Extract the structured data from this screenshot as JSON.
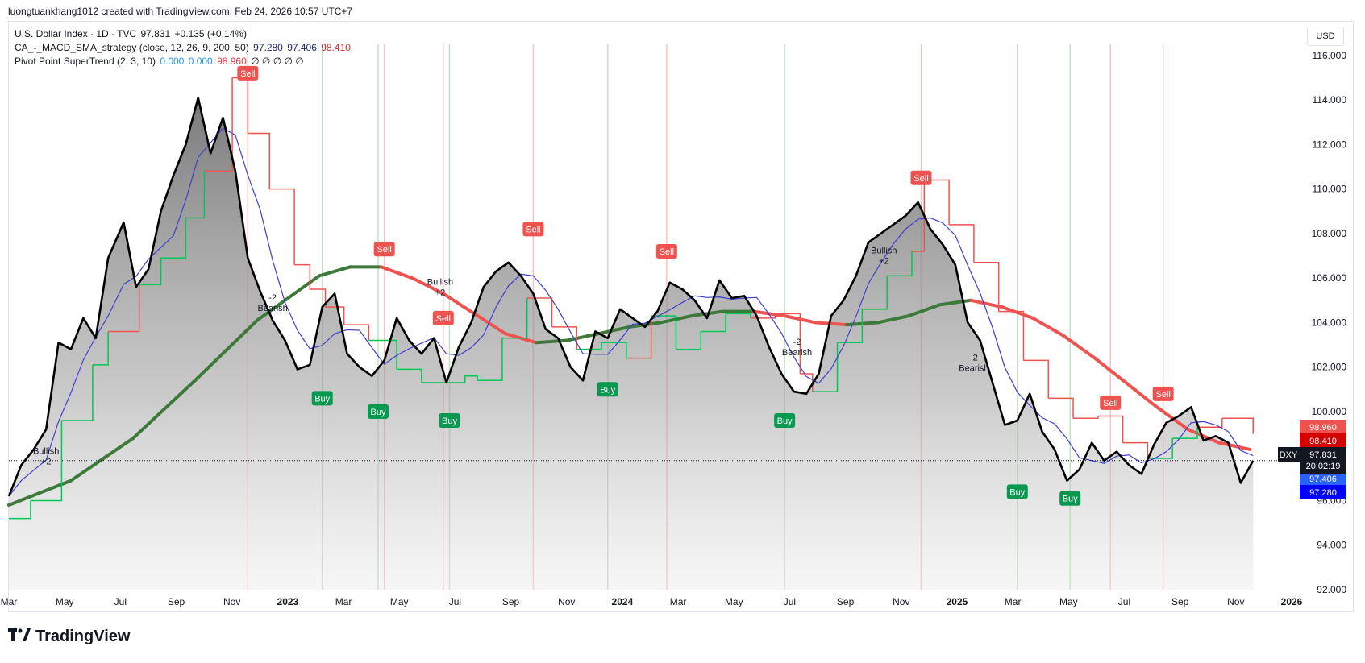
{
  "credit": "luongtuankhang1012 created with TradingView.com, Feb 24, 2026 10:57 UTC+7",
  "legend": {
    "line1": {
      "name": "U.S. Dollar Index · 1D · TVC",
      "price": "97.831",
      "change": "+0.135 (+0.14%)"
    },
    "line2": {
      "name": "CA_-_MACD_SMA_strategy (close, 12, 26, 9, 200, 50)",
      "v1": "97.280",
      "v2": "97.406",
      "v3": "98.410"
    },
    "line3": {
      "name": "Pivot Point SuperTrend (2, 3, 10)",
      "v1": "0.000",
      "v2": "0.000",
      "v3": "98.960",
      "v4": "∅ ∅ ∅ ∅ ∅"
    }
  },
  "currency": "USD",
  "footer": {
    "logo": "TradingView"
  },
  "colors": {
    "price": "#000000",
    "sma200_up": "#3d7a3a",
    "sma200_down": "#ef5350",
    "supertrend_up": "#00c853",
    "supertrend_down": "#ef5350",
    "fast": "#3f3fd0",
    "buy": "#089950",
    "sell": "#ef5350"
  },
  "chart_data": {
    "type": "line",
    "symbol": "DXY",
    "x_labels": [
      "Mar",
      "May",
      "Jul",
      "Sep",
      "Nov",
      "2023",
      "Mar",
      "May",
      "Jul",
      "Sep",
      "Nov",
      "2024",
      "Mar",
      "May",
      "Jul",
      "Sep",
      "Nov",
      "2025",
      "Mar",
      "May",
      "Jul",
      "Sep",
      "Nov",
      "2026"
    ],
    "y_ticks": [
      "116.000",
      "114.000",
      "112.000",
      "110.000",
      "108.000",
      "106.000",
      "104.000",
      "102.000",
      "100.000",
      "98.000",
      "96.000",
      "94.000",
      "92.000"
    ],
    "ylim": [
      92,
      116.5
    ],
    "xlim": [
      2022.13,
      2026.29
    ],
    "series": [
      {
        "name": "U.S. Dollar Index",
        "x": [
          2022.13,
          2022.17,
          2022.21,
          2022.25,
          2022.29,
          2022.33,
          2022.37,
          2022.41,
          2022.45,
          2022.5,
          2022.54,
          2022.58,
          2022.62,
          2022.66,
          2022.7,
          2022.74,
          2022.78,
          2022.82,
          2022.86,
          2022.9,
          2022.94,
          2022.98,
          2023.02,
          2023.06,
          2023.1,
          2023.14,
          2023.18,
          2023.22,
          2023.26,
          2023.3,
          2023.34,
          2023.38,
          2023.42,
          2023.46,
          2023.5,
          2023.54,
          2023.58,
          2023.62,
          2023.66,
          2023.7,
          2023.74,
          2023.78,
          2023.82,
          2023.86,
          2023.9,
          2023.94,
          2023.98,
          2024.02,
          2024.06,
          2024.1,
          2024.14,
          2024.18,
          2024.22,
          2024.26,
          2024.3,
          2024.34,
          2024.38,
          2024.42,
          2024.46,
          2024.5,
          2024.54,
          2024.58,
          2024.62,
          2024.66,
          2024.7,
          2024.74,
          2024.78,
          2024.82,
          2024.86,
          2024.9,
          2024.94,
          2024.98,
          2025.02,
          2025.06,
          2025.1,
          2025.14,
          2025.18,
          2025.22,
          2025.26,
          2025.3,
          2025.34,
          2025.38,
          2025.42,
          2025.46,
          2025.5,
          2025.54,
          2025.58,
          2025.62,
          2025.66,
          2025.7,
          2025.74,
          2025.78,
          2025.82,
          2025.86,
          2025.9,
          2025.94,
          2025.98,
          2026.02,
          2026.06,
          2026.1,
          2026.14
        ],
        "values": [
          96.2,
          97.6,
          98.3,
          99.2,
          103.1,
          102.8,
          104.2,
          103.3,
          106.9,
          108.5,
          105.6,
          106.4,
          109.0,
          110.6,
          112.0,
          114.1,
          111.6,
          113.2,
          110.8,
          106.9,
          105.4,
          104.1,
          103.2,
          101.9,
          102.1,
          104.7,
          105.3,
          102.6,
          102.0,
          101.6,
          102.3,
          104.2,
          103.2,
          102.6,
          103.3,
          101.3,
          102.9,
          104.0,
          105.6,
          106.3,
          106.7,
          106.1,
          105.3,
          103.7,
          103.3,
          102.0,
          101.4,
          103.6,
          103.3,
          104.6,
          104.2,
          103.8,
          104.5,
          105.8,
          105.5,
          105.0,
          104.2,
          105.9,
          105.1,
          105.2,
          104.3,
          102.9,
          101.7,
          100.9,
          100.8,
          101.7,
          104.3,
          105.0,
          106.1,
          107.6,
          108.0,
          108.4,
          108.8,
          109.4,
          108.2,
          107.5,
          106.6,
          104.0,
          103.2,
          101.3,
          99.4,
          99.6,
          100.8,
          99.1,
          98.3,
          96.9,
          97.4,
          98.6,
          97.8,
          98.2,
          97.6,
          97.2,
          98.5,
          99.5,
          99.8,
          100.2,
          98.7,
          98.9,
          98.6,
          96.8,
          97.8
        ]
      },
      {
        "name": "SMA 200",
        "x": [
          2022.13,
          2022.33,
          2022.53,
          2022.73,
          2022.93,
          2023.13,
          2023.23,
          2023.33,
          2023.43,
          2023.53,
          2023.63,
          2023.73,
          2023.83,
          2023.93,
          2024.03,
          2024.13,
          2024.23,
          2024.33,
          2024.43,
          2024.53,
          2024.63,
          2024.73,
          2024.83,
          2024.93,
          2025.03,
          2025.13,
          2025.23,
          2025.33,
          2025.43,
          2025.53,
          2025.63,
          2025.73,
          2025.83,
          2025.93,
          2026.03,
          2026.13
        ],
        "values": [
          95.8,
          96.9,
          98.8,
          101.4,
          104.1,
          106.1,
          106.5,
          106.5,
          106.0,
          105.3,
          104.4,
          103.5,
          103.1,
          103.2,
          103.5,
          103.8,
          104.0,
          104.3,
          104.5,
          104.5,
          104.3,
          104.0,
          103.9,
          104.0,
          104.3,
          104.8,
          105.0,
          104.7,
          104.2,
          103.4,
          102.4,
          101.3,
          100.2,
          99.2,
          98.6,
          98.3
        ]
      },
      {
        "name": "SuperTrend",
        "x": [
          2022.13,
          2022.2,
          2022.3,
          2022.4,
          2022.45,
          2022.55,
          2022.62,
          2022.7,
          2022.76,
          2022.85,
          2022.9,
          2022.97,
          2023.05,
          2023.1,
          2023.15,
          2023.21,
          2023.29,
          2023.38,
          2023.46,
          2023.52,
          2023.6,
          2023.64,
          2023.72,
          2023.8,
          2023.88,
          2023.96,
          2024.04,
          2024.12,
          2024.2,
          2024.28,
          2024.36,
          2024.44,
          2024.52,
          2024.6,
          2024.68,
          2024.72,
          2024.8,
          2024.88,
          2024.96,
          2025.04,
          2025.08,
          2025.16,
          2025.24,
          2025.32,
          2025.4,
          2025.48,
          2025.56,
          2025.64,
          2025.72,
          2025.8,
          2025.88,
          2025.96,
          2026.04,
          2026.14
        ],
        "values": [
          95.2,
          96.0,
          99.6,
          102.1,
          103.6,
          105.7,
          106.9,
          108.7,
          110.8,
          115.0,
          112.5,
          110.0,
          106.6,
          105.5,
          104.7,
          103.9,
          103.2,
          101.9,
          101.3,
          101.3,
          101.6,
          101.4,
          103.3,
          105.1,
          103.8,
          102.8,
          103.1,
          102.4,
          104.3,
          102.8,
          103.6,
          104.4,
          104.2,
          104.4,
          101.7,
          100.9,
          103.1,
          104.6,
          106.1,
          107.2,
          110.4,
          108.4,
          106.7,
          104.5,
          102.3,
          100.6,
          99.7,
          99.8,
          98.6,
          97.9,
          98.8,
          99.3,
          99.7,
          99.0
        ]
      }
    ],
    "last_price": "97.831",
    "countdown": "20:02:19",
    "price_labels": [
      "98.960",
      "98.410",
      "97.406",
      "97.280"
    ],
    "signals": [
      {
        "label": "Sell",
        "x": 2022.9,
        "y": 115.2
      },
      {
        "label": "Sell",
        "x": 2023.34,
        "y": 107.3
      },
      {
        "label": "Sell",
        "x": 2023.53,
        "y": 104.2
      },
      {
        "label": "Sell",
        "x": 2023.82,
        "y": 108.2
      },
      {
        "label": "Sell",
        "x": 2024.25,
        "y": 107.2
      },
      {
        "label": "Sell",
        "x": 2025.07,
        "y": 110.5
      },
      {
        "label": "Sell",
        "x": 2025.68,
        "y": 100.4
      },
      {
        "label": "Sell",
        "x": 2025.85,
        "y": 100.8
      },
      {
        "label": "Buy",
        "x": 2023.14,
        "y": 100.6
      },
      {
        "label": "Buy",
        "x": 2023.32,
        "y": 100.0
      },
      {
        "label": "Buy",
        "x": 2023.55,
        "y": 99.6
      },
      {
        "label": "Buy",
        "x": 2024.06,
        "y": 101.0
      },
      {
        "label": "Buy",
        "x": 2024.63,
        "y": 99.6
      },
      {
        "label": "Buy",
        "x": 2025.38,
        "y": 96.4
      },
      {
        "label": "Buy",
        "x": 2025.55,
        "y": 96.1
      }
    ],
    "annotations": [
      {
        "text": "Bullish",
        "sub": "+2",
        "x": 2022.25,
        "y": 98.1
      },
      {
        "text": "-2",
        "sub": "Bearish",
        "x": 2022.98,
        "y": 105.0
      },
      {
        "text": "Bullish",
        "sub": "+2",
        "x": 2023.52,
        "y": 105.7
      },
      {
        "text": "-2",
        "sub": "Bearish",
        "x": 2024.67,
        "y": 103.0
      },
      {
        "text": "Bullish",
        "sub": "+2",
        "x": 2024.95,
        "y": 107.1
      },
      {
        "text": "-2",
        "sub": "Bearish",
        "x": 2025.24,
        "y": 102.3
      }
    ]
  }
}
